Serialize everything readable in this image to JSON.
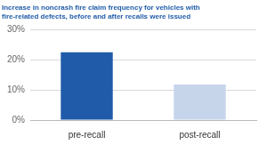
{
  "chart_data": {
    "type": "bar",
    "title": [
      "Increase in noncrash fire claim frequency for vehicles with",
      "fire-related defects, before and after recalls were issued"
    ],
    "categories": [
      "pre-recall",
      "post-recall"
    ],
    "values": [
      22.5,
      11.8
    ],
    "colors": [
      "#1f5ba8",
      "#c7d5eb"
    ],
    "ylim": [
      0,
      30
    ],
    "yticks": [
      {
        "value": 0,
        "label": "0%"
      },
      {
        "value": 10,
        "label": "10%"
      },
      {
        "value": 20,
        "label": "20%"
      },
      {
        "value": 30,
        "label": "30%"
      }
    ],
    "grid": true
  }
}
